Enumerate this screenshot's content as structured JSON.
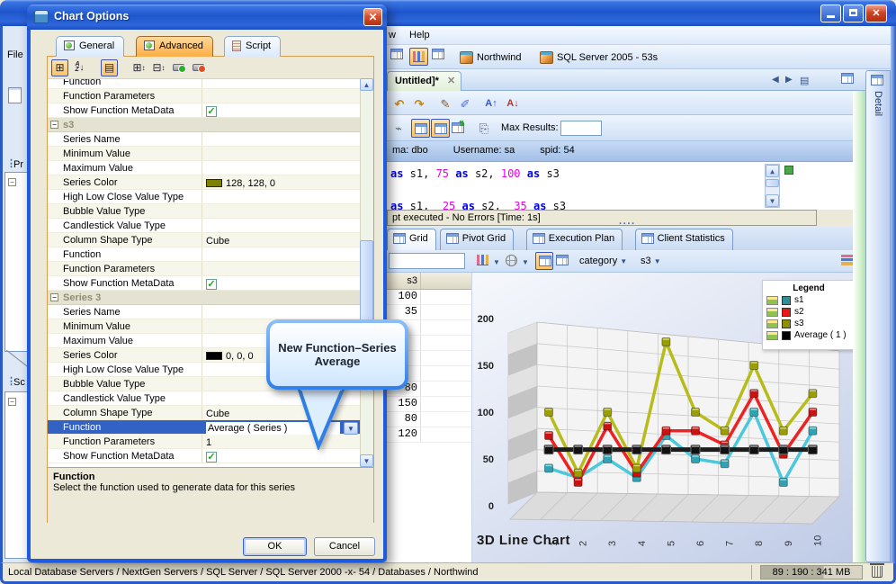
{
  "app": {
    "window": {
      "menu_items": [
        "w",
        "Help"
      ],
      "left_panel": {
        "file_menu": "File",
        "panel1": "Pr",
        "panel2": "Sc"
      }
    },
    "main_toolbar": {
      "connections": [
        {
          "label": "Northwind"
        },
        {
          "label": "SQL Server 2005 - 53s"
        }
      ]
    },
    "doc_tab": {
      "label": "Untitled]*",
      "close": "x"
    },
    "detail_tab": {
      "label": "Detail"
    },
    "editor": {
      "max_results_label": "Max Results:",
      "max_results_value": "",
      "session": [
        {
          "label": "ma:",
          "value": "dbo"
        },
        {
          "label": "Username:",
          "value": "sa"
        },
        {
          "label": "spid:",
          "value": "54"
        }
      ],
      "sql_lines": [
        [
          {
            "t": "as",
            "c": "kw"
          },
          {
            "t": " s1, ",
            "c": "pl"
          },
          {
            "t": "75",
            "c": "num"
          },
          {
            "t": " ",
            "c": "pl"
          },
          {
            "t": "as",
            "c": "kw"
          },
          {
            "t": " s2, ",
            "c": "pl"
          },
          {
            "t": "100",
            "c": "num"
          },
          {
            "t": " ",
            "c": "pl"
          },
          {
            "t": "as",
            "c": "kw"
          },
          {
            "t": " s3",
            "c": "pl"
          }
        ],
        [
          {
            "t": "as",
            "c": "kw"
          },
          {
            "t": " s1,  ",
            "c": "pl"
          },
          {
            "t": "25",
            "c": "num"
          },
          {
            "t": " ",
            "c": "pl"
          },
          {
            "t": "as",
            "c": "kw"
          },
          {
            "t": " s2,  ",
            "c": "pl"
          },
          {
            "t": "35",
            "c": "num"
          },
          {
            "t": " ",
            "c": "pl"
          },
          {
            "t": "as",
            "c": "kw"
          },
          {
            "t": " s3",
            "c": "pl"
          }
        ]
      ],
      "exec_status": "pt executed - No Errors [Time: 1s]"
    },
    "result_tabs": [
      {
        "label": "Grid",
        "active": true
      },
      {
        "label": "Pivot Grid",
        "active": false
      },
      {
        "label": "Execution Plan",
        "active": false
      },
      {
        "label": "Client Statistics",
        "active": false
      }
    ],
    "chart_toolbar": {
      "category_label": "category",
      "series_label": "s3",
      "filter_value": ""
    },
    "results_grid": {
      "header": "s3",
      "values": [
        "100",
        "35",
        "",
        "",
        "",
        "",
        "80",
        "150",
        "80",
        "120"
      ]
    },
    "status_bar": {
      "left": "Local Database Servers / NextGen Servers / SQL Server / SQL Server 2000 -x- 54 / Databases / Northwind",
      "memory": "89 : 190 : 341 MB"
    }
  },
  "dialog": {
    "title": "Chart Options",
    "tabs": [
      {
        "label": "General",
        "active": false,
        "icon": "table-icon"
      },
      {
        "label": "Advanced",
        "active": true,
        "icon": "table-icon"
      },
      {
        "label": "Script",
        "active": false,
        "icon": "script-icon"
      }
    ],
    "rows": [
      {
        "label": "Function",
        "type": "text",
        "value": ""
      },
      {
        "label": "Function Parameters",
        "type": "text",
        "value": ""
      },
      {
        "label": "Show Function MetaData",
        "type": "check",
        "checked": true
      },
      {
        "label": "s3",
        "type": "group"
      },
      {
        "label": "Series Name",
        "type": "text",
        "value": ""
      },
      {
        "label": "Minimum Value",
        "type": "text",
        "value": ""
      },
      {
        "label": "Maximum Value",
        "type": "text",
        "value": ""
      },
      {
        "label": "Series Color",
        "type": "color",
        "swatch": "#808000",
        "value": "128, 128, 0"
      },
      {
        "label": "High Low Close Value Type",
        "type": "text",
        "value": ""
      },
      {
        "label": "Bubble Value Type",
        "type": "text",
        "value": ""
      },
      {
        "label": "Candlestick Value Type",
        "type": "text",
        "value": ""
      },
      {
        "label": "Column Shape Type",
        "type": "text",
        "value": "Cube"
      },
      {
        "label": "Function",
        "type": "text",
        "value": ""
      },
      {
        "label": "Function Parameters",
        "type": "text",
        "value": ""
      },
      {
        "label": "Show Function MetaData",
        "type": "check",
        "checked": true
      },
      {
        "label": "Series 3",
        "type": "group"
      },
      {
        "label": "Series Name",
        "type": "text",
        "value": ""
      },
      {
        "label": "Minimum Value",
        "type": "text",
        "value": ""
      },
      {
        "label": "Maximum Value",
        "type": "text",
        "value": ""
      },
      {
        "label": "Series Color",
        "type": "color",
        "swatch": "#000000",
        "value": "0, 0, 0"
      },
      {
        "label": "High Low Close Value Type",
        "type": "text",
        "value": ""
      },
      {
        "label": "Bubble Value Type",
        "type": "text",
        "value": ""
      },
      {
        "label": "Candlestick Value Type",
        "type": "text",
        "value": ""
      },
      {
        "label": "Column Shape Type",
        "type": "text",
        "value": "Cube"
      },
      {
        "label": "Function",
        "type": "combo",
        "value": "Average ( Series )",
        "selected": true
      },
      {
        "label": "Function Parameters",
        "type": "text",
        "value": "1"
      },
      {
        "label": "Show Function MetaData",
        "type": "check",
        "checked": true
      }
    ],
    "description": {
      "title": "Function",
      "text": "Select the function used to generate data for this series"
    },
    "buttons": {
      "ok": "OK",
      "cancel": "Cancel"
    }
  },
  "callout": {
    "line1": "New Function–Series",
    "line2": "Average"
  },
  "chart_data": {
    "type": "line",
    "projection": "3d",
    "title": "3D Line Chart",
    "categories": [
      "1",
      "2",
      "3",
      "4",
      "5",
      "6",
      "7",
      "8",
      "9",
      "10"
    ],
    "series": [
      {
        "name": "s1",
        "color": "#4cc8dc",
        "marker": "#2fa3b4",
        "swatch": "#2e8f99",
        "values": [
          40,
          30,
          50,
          30,
          75,
          50,
          45,
          100,
          25,
          80
        ]
      },
      {
        "name": "s2",
        "color": "#ee2222",
        "marker": "#cc1111",
        "swatch": "#ee1515",
        "values": [
          75,
          25,
          85,
          35,
          80,
          80,
          65,
          120,
          55,
          100
        ]
      },
      {
        "name": "s3",
        "color": "#b8bc1a",
        "marker": "#9a9e00",
        "swatch": "#8f8f00",
        "values": [
          100,
          35,
          100,
          40,
          175,
          100,
          80,
          150,
          80,
          120
        ]
      },
      {
        "name": "Average ( 1 )",
        "color": "#1d1d1d",
        "marker": "#111111",
        "swatch": "#000000",
        "values": [
          60,
          60,
          60,
          60,
          60,
          60,
          60,
          60,
          60,
          60
        ]
      }
    ],
    "ylim": [
      0,
      200
    ],
    "yticks": [
      0,
      50,
      100,
      150,
      200
    ],
    "legend": {
      "title": "Legend",
      "position": "top-right"
    },
    "grid": true
  }
}
